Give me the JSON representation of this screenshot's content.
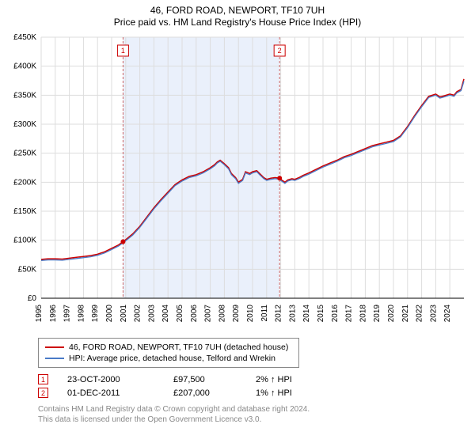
{
  "title": "46, FORD ROAD, NEWPORT, TF10 7UH",
  "subtitle": "Price paid vs. HM Land Registry's House Price Index (HPI)",
  "chart": {
    "type": "line",
    "background_color": "#ffffff",
    "plot_background_color": "#ffffff",
    "grid_color": "#dddddd",
    "axis_color": "#000000",
    "xlim": [
      1995,
      2025
    ],
    "ylim": [
      0,
      450000
    ],
    "ytick_step": 50000,
    "ytick_labels": [
      "£0",
      "£50K",
      "£100K",
      "£150K",
      "£200K",
      "£250K",
      "£300K",
      "£350K",
      "£400K",
      "£450K"
    ],
    "xtick_step": 1,
    "xticks": [
      1995,
      1996,
      1997,
      1998,
      1999,
      2000,
      2001,
      2002,
      2003,
      2004,
      2005,
      2006,
      2007,
      2008,
      2009,
      2010,
      2011,
      2012,
      2013,
      2014,
      2015,
      2016,
      2017,
      2018,
      2019,
      2020,
      2021,
      2022,
      2023,
      2024
    ],
    "xtick_labels": [
      "1995",
      "1996",
      "1997",
      "1998",
      "1999",
      "2000",
      "2001",
      "2002",
      "2003",
      "2004",
      "2005",
      "2006",
      "2007",
      "2008",
      "2009",
      "2010",
      "2011",
      "2012",
      "2013",
      "2014",
      "2015",
      "2016",
      "2017",
      "2018",
      "2019",
      "2020",
      "2021",
      "2022",
      "2023",
      "2024"
    ],
    "label_fontsize": 10,
    "shaded_region": {
      "x_start": 2000.81,
      "x_end": 2011.92,
      "fill_color": "#eaf0fb"
    },
    "series": [
      {
        "name": "price_paid",
        "label": "46, FORD ROAD, NEWPORT, TF10 7UH (detached house)",
        "color": "#cc0000",
        "line_width": 1.5,
        "data": [
          [
            1995.0,
            67000
          ],
          [
            1995.5,
            68000
          ],
          [
            1996.0,
            68000
          ],
          [
            1996.5,
            67500
          ],
          [
            1997.0,
            69000
          ],
          [
            1997.5,
            70500
          ],
          [
            1998.0,
            72000
          ],
          [
            1998.5,
            73500
          ],
          [
            1999.0,
            76000
          ],
          [
            1999.5,
            80000
          ],
          [
            2000.0,
            86000
          ],
          [
            2000.5,
            92000
          ],
          [
            2000.81,
            97500
          ],
          [
            2001.0,
            101000
          ],
          [
            2001.5,
            111000
          ],
          [
            2002.0,
            124000
          ],
          [
            2002.5,
            140000
          ],
          [
            2003.0,
            156000
          ],
          [
            2003.5,
            170000
          ],
          [
            2004.0,
            183000
          ],
          [
            2004.5,
            196000
          ],
          [
            2005.0,
            204000
          ],
          [
            2005.5,
            210000
          ],
          [
            2006.0,
            213000
          ],
          [
            2006.5,
            218000
          ],
          [
            2007.0,
            225000
          ],
          [
            2007.3,
            230000
          ],
          [
            2007.5,
            235000
          ],
          [
            2007.7,
            238000
          ],
          [
            2008.0,
            232000
          ],
          [
            2008.3,
            225000
          ],
          [
            2008.5,
            215000
          ],
          [
            2008.8,
            208000
          ],
          [
            2009.0,
            200000
          ],
          [
            2009.3,
            205000
          ],
          [
            2009.5,
            218000
          ],
          [
            2009.8,
            215000
          ],
          [
            2010.0,
            218000
          ],
          [
            2010.3,
            220000
          ],
          [
            2010.5,
            215000
          ],
          [
            2010.8,
            208000
          ],
          [
            2011.0,
            205000
          ],
          [
            2011.3,
            207000
          ],
          [
            2011.6,
            208000
          ],
          [
            2011.92,
            207000
          ],
          [
            2012.0,
            205000
          ],
          [
            2012.3,
            200000
          ],
          [
            2012.5,
            204000
          ],
          [
            2012.8,
            206000
          ],
          [
            2013.0,
            205000
          ],
          [
            2013.3,
            208000
          ],
          [
            2013.6,
            212000
          ],
          [
            2014.0,
            216000
          ],
          [
            2014.5,
            222000
          ],
          [
            2015.0,
            228000
          ],
          [
            2015.5,
            233000
          ],
          [
            2016.0,
            238000
          ],
          [
            2016.5,
            244000
          ],
          [
            2017.0,
            248000
          ],
          [
            2017.5,
            253000
          ],
          [
            2018.0,
            258000
          ],
          [
            2018.5,
            263000
          ],
          [
            2019.0,
            266000
          ],
          [
            2019.5,
            269000
          ],
          [
            2020.0,
            272000
          ],
          [
            2020.5,
            280000
          ],
          [
            2021.0,
            296000
          ],
          [
            2021.5,
            315000
          ],
          [
            2022.0,
            332000
          ],
          [
            2022.5,
            348000
          ],
          [
            2023.0,
            352000
          ],
          [
            2023.3,
            347000
          ],
          [
            2023.6,
            349000
          ],
          [
            2024.0,
            352000
          ],
          [
            2024.3,
            350000
          ],
          [
            2024.5,
            356000
          ],
          [
            2024.8,
            360000
          ],
          [
            2025.0,
            378000
          ]
        ]
      },
      {
        "name": "hpi",
        "label": "HPI: Average price, detached house, Telford and Wrekin",
        "color": "#4a7ac7",
        "line_width": 1.3,
        "data": [
          [
            1995.0,
            65000
          ],
          [
            1995.5,
            66000
          ],
          [
            1996.0,
            66000
          ],
          [
            1996.5,
            65500
          ],
          [
            1997.0,
            67000
          ],
          [
            1997.5,
            68500
          ],
          [
            1998.0,
            70000
          ],
          [
            1998.5,
            71500
          ],
          [
            1999.0,
            74000
          ],
          [
            1999.5,
            78000
          ],
          [
            2000.0,
            84000
          ],
          [
            2000.5,
            90000
          ],
          [
            2000.81,
            95500
          ],
          [
            2001.0,
            99000
          ],
          [
            2001.5,
            109000
          ],
          [
            2002.0,
            122000
          ],
          [
            2002.5,
            138000
          ],
          [
            2003.0,
            154000
          ],
          [
            2003.5,
            168000
          ],
          [
            2004.0,
            181000
          ],
          [
            2004.5,
            194000
          ],
          [
            2005.0,
            202000
          ],
          [
            2005.5,
            208000
          ],
          [
            2006.0,
            211000
          ],
          [
            2006.5,
            216000
          ],
          [
            2007.0,
            223000
          ],
          [
            2007.3,
            228000
          ],
          [
            2007.5,
            233000
          ],
          [
            2007.7,
            236000
          ],
          [
            2008.0,
            230000
          ],
          [
            2008.3,
            223000
          ],
          [
            2008.5,
            213000
          ],
          [
            2008.8,
            206000
          ],
          [
            2009.0,
            198000
          ],
          [
            2009.3,
            203000
          ],
          [
            2009.5,
            216000
          ],
          [
            2009.8,
            213000
          ],
          [
            2010.0,
            216000
          ],
          [
            2010.3,
            218000
          ],
          [
            2010.5,
            213000
          ],
          [
            2010.8,
            206000
          ],
          [
            2011.0,
            203000
          ],
          [
            2011.3,
            205000
          ],
          [
            2011.6,
            206000
          ],
          [
            2011.92,
            205000
          ],
          [
            2012.0,
            203000
          ],
          [
            2012.3,
            198000
          ],
          [
            2012.5,
            202000
          ],
          [
            2012.8,
            204000
          ],
          [
            2013.0,
            203000
          ],
          [
            2013.3,
            206000
          ],
          [
            2013.6,
            210000
          ],
          [
            2014.0,
            214000
          ],
          [
            2014.5,
            220000
          ],
          [
            2015.0,
            226000
          ],
          [
            2015.5,
            231000
          ],
          [
            2016.0,
            236000
          ],
          [
            2016.5,
            242000
          ],
          [
            2017.0,
            246000
          ],
          [
            2017.5,
            251000
          ],
          [
            2018.0,
            256000
          ],
          [
            2018.5,
            261000
          ],
          [
            2019.0,
            264000
          ],
          [
            2019.5,
            267000
          ],
          [
            2020.0,
            270000
          ],
          [
            2020.5,
            278000
          ],
          [
            2021.0,
            294000
          ],
          [
            2021.5,
            313000
          ],
          [
            2022.0,
            330000
          ],
          [
            2022.5,
            346000
          ],
          [
            2023.0,
            350000
          ],
          [
            2023.3,
            345000
          ],
          [
            2023.6,
            347000
          ],
          [
            2024.0,
            350000
          ],
          [
            2024.3,
            348000
          ],
          [
            2024.5,
            354000
          ],
          [
            2024.8,
            358000
          ],
          [
            2025.0,
            374000
          ]
        ]
      }
    ],
    "sale_markers": [
      {
        "n": "1",
        "x": 2000.81,
        "y": 97500,
        "color": "#cc0000",
        "radius": 3
      },
      {
        "n": "2",
        "x": 2011.92,
        "y": 207000,
        "color": "#cc0000",
        "radius": 3
      }
    ],
    "flag_markers": [
      {
        "n": "1",
        "x": 2000.81
      },
      {
        "n": "2",
        "x": 2011.92
      }
    ]
  },
  "legend": {
    "items": [
      {
        "color": "#cc0000",
        "label": "46, FORD ROAD, NEWPORT, TF10 7UH (detached house)"
      },
      {
        "color": "#4a7ac7",
        "label": "HPI: Average price, detached house, Telford and Wrekin"
      }
    ]
  },
  "sales": [
    {
      "n": "1",
      "date": "23-OCT-2000",
      "price": "£97,500",
      "hpi": "2% ↑ HPI"
    },
    {
      "n": "2",
      "date": "01-DEC-2011",
      "price": "£207,000",
      "hpi": "1% ↑ HPI"
    }
  ],
  "footer": {
    "line1": "Contains HM Land Registry data © Crown copyright and database right 2024.",
    "line2": "This data is licensed under the Open Government Licence v3.0."
  }
}
